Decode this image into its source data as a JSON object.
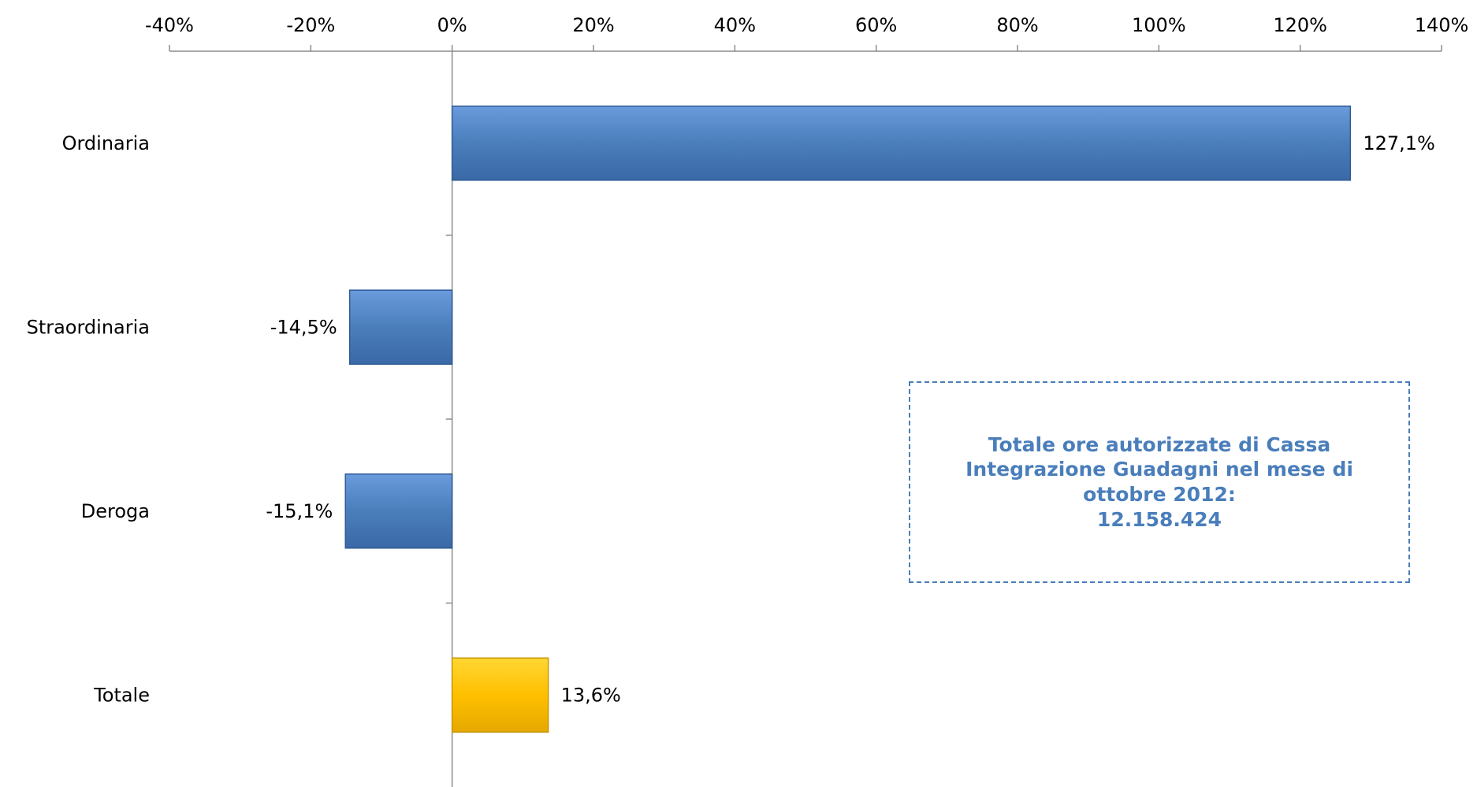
{
  "chart_data": {
    "type": "bar",
    "orientation": "horizontal",
    "categories": [
      "Ordinaria",
      "Straordinaria",
      "Deroga",
      "Totale"
    ],
    "values": [
      127.1,
      -14.5,
      -15.1,
      13.6
    ],
    "value_labels": [
      "127,1%",
      "-14,5%",
      "-15,1%",
      "13,6%"
    ],
    "bar_colors": [
      "#4a7ebb",
      "#4a7ebb",
      "#4a7ebb",
      "#ffc000"
    ],
    "xlim": [
      -40,
      140
    ],
    "xticks": [
      -40,
      -20,
      0,
      20,
      40,
      60,
      80,
      100,
      120,
      140
    ],
    "xtick_labels": [
      "-40%",
      "-20%",
      "0%",
      "20%",
      "40%",
      "60%",
      "80%",
      "100%",
      "120%",
      "140%"
    ],
    "x_axis_position": "top",
    "grid": false,
    "title": "",
    "xlabel": "",
    "ylabel": ""
  },
  "annotation": {
    "lines": [
      "Totale ore autorizzate di Cassa",
      "Integrazione Guadagni nel mese di",
      "ottobre 2012:",
      "12.158.424"
    ],
    "color": "#4a7ebb"
  }
}
